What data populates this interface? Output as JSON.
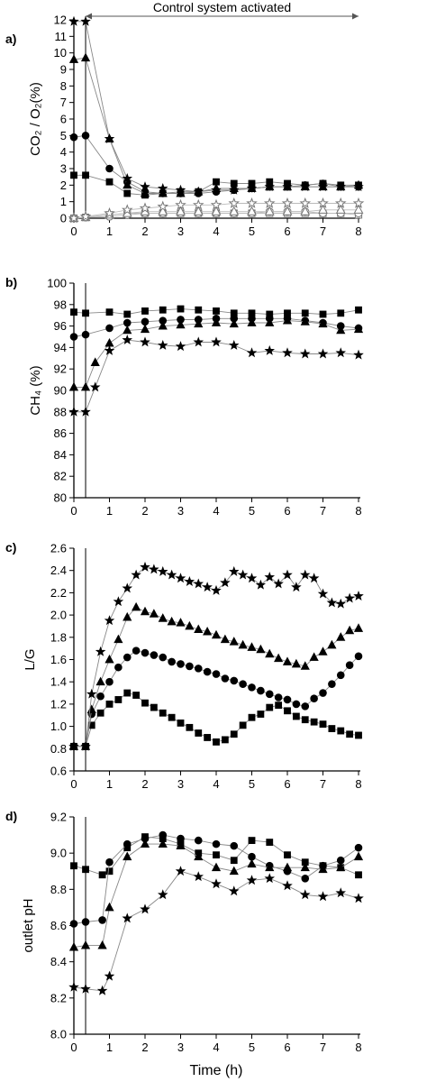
{
  "figure": {
    "xlabel": "Time (h)",
    "banner": "Control system activated",
    "event_time": 0.33,
    "colors": {
      "filled": "#000000",
      "open_fill": "#ffffff",
      "open_stroke": "#777777",
      "line": "#888888"
    }
  },
  "chart_data": [
    {
      "type": "scatter",
      "panel": "a)",
      "ylabel": "CO₂ / O₂(%)",
      "xlim": [
        0,
        8
      ],
      "ylim": [
        0,
        12
      ],
      "xticks": [
        0,
        1,
        2,
        3,
        4,
        5,
        6,
        7,
        8
      ],
      "yticks": [
        0,
        1,
        2,
        3,
        4,
        5,
        6,
        7,
        8,
        9,
        10,
        11,
        12
      ],
      "x": [
        0,
        0.33,
        1,
        1.5,
        2,
        2.5,
        3,
        3.5,
        4,
        4.5,
        5,
        5.5,
        6,
        6.5,
        7,
        7.5,
        8
      ],
      "series": [
        {
          "marker": "square",
          "filled": true,
          "values": [
            2.6,
            2.6,
            2.2,
            1.5,
            1.4,
            1.5,
            1.6,
            1.6,
            2.2,
            2.1,
            2.1,
            2.2,
            2.1,
            2.0,
            2.1,
            2.0,
            2.0
          ]
        },
        {
          "marker": "circle",
          "filled": true,
          "values": [
            4.9,
            5.0,
            3.0,
            2.2,
            1.6,
            1.5,
            1.5,
            1.5,
            1.6,
            1.7,
            1.8,
            1.9,
            1.9,
            2.0,
            2.1,
            1.9,
            1.9
          ]
        },
        {
          "marker": "triangle",
          "filled": true,
          "values": [
            9.6,
            9.7,
            4.8,
            2.0,
            1.5,
            1.5,
            1.5,
            1.6,
            1.8,
            1.8,
            1.8,
            1.9,
            1.9,
            1.9,
            1.9,
            1.9,
            2.0
          ]
        },
        {
          "marker": "star",
          "filled": true,
          "values": [
            11.9,
            11.9,
            4.8,
            2.4,
            1.9,
            1.8,
            1.7,
            1.6,
            1.7,
            1.7,
            1.8,
            1.9,
            1.9,
            1.9,
            1.9,
            1.9,
            1.9
          ]
        },
        {
          "marker": "square",
          "filled": false,
          "values": [
            0.0,
            0.05,
            0.2,
            0.3,
            0.3,
            0.3,
            0.3,
            0.3,
            0.3,
            0.3,
            0.3,
            0.3,
            0.3,
            0.3,
            0.3,
            0.3,
            0.2
          ]
        },
        {
          "marker": "circle",
          "filled": false,
          "values": [
            0.0,
            0.05,
            0.1,
            0.2,
            0.3,
            0.3,
            0.3,
            0.3,
            0.3,
            0.3,
            0.3,
            0.4,
            0.4,
            0.4,
            0.3,
            0.3,
            0.3
          ]
        },
        {
          "marker": "triangle",
          "filled": false,
          "values": [
            0.0,
            0.05,
            0.2,
            0.3,
            0.4,
            0.4,
            0.4,
            0.4,
            0.4,
            0.4,
            0.4,
            0.4,
            0.4,
            0.4,
            0.5,
            0.5,
            0.5
          ]
        },
        {
          "marker": "star",
          "filled": false,
          "values": [
            0.0,
            0.1,
            0.3,
            0.5,
            0.6,
            0.7,
            0.8,
            0.8,
            0.8,
            0.9,
            0.9,
            0.9,
            0.9,
            0.9,
            0.9,
            0.9,
            0.9
          ]
        }
      ]
    },
    {
      "type": "scatter",
      "panel": "b)",
      "ylabel": "CH₄ (%)",
      "xlim": [
        0,
        8
      ],
      "ylim": [
        80,
        100
      ],
      "xticks": [
        0,
        1,
        2,
        3,
        4,
        5,
        6,
        7,
        8
      ],
      "yticks": [
        80,
        82,
        84,
        86,
        88,
        90,
        92,
        94,
        96,
        98,
        100
      ],
      "series": [
        {
          "marker": "square",
          "filled": true,
          "x": [
            0,
            0.33,
            1,
            1.5,
            2,
            2.5,
            3,
            3.5,
            4,
            4.5,
            5,
            5.5,
            6,
            6.5,
            7,
            7.5,
            8
          ],
          "values": [
            97.3,
            97.2,
            97.3,
            97.1,
            97.4,
            97.5,
            97.6,
            97.5,
            97.4,
            97.2,
            97.2,
            97.1,
            97.2,
            97.2,
            97.1,
            97.2,
            97.5
          ]
        },
        {
          "marker": "circle",
          "filled": true,
          "x": [
            0,
            0.33,
            1,
            1.5,
            2,
            2.5,
            3,
            3.5,
            4,
            4.5,
            5,
            5.5,
            6,
            6.5,
            7,
            7.5,
            8
          ],
          "values": [
            95.0,
            95.2,
            95.8,
            96.3,
            96.4,
            96.5,
            96.6,
            96.6,
            96.7,
            96.7,
            96.7,
            96.7,
            96.7,
            96.5,
            96.3,
            96.0,
            95.8
          ]
        },
        {
          "marker": "triangle",
          "filled": true,
          "x": [
            0,
            0.33,
            0.6,
            1,
            1.5,
            2,
            2.5,
            3,
            3.5,
            4,
            4.5,
            5,
            5.5,
            6,
            6.5,
            7,
            7.5,
            8
          ],
          "values": [
            90.3,
            90.3,
            92.6,
            94.4,
            95.6,
            95.7,
            96.0,
            96.1,
            96.2,
            96.3,
            96.2,
            96.3,
            96.3,
            96.5,
            96.4,
            96.2,
            95.6,
            95.7
          ]
        },
        {
          "marker": "star",
          "filled": true,
          "x": [
            0,
            0.33,
            0.6,
            1,
            1.5,
            2,
            2.5,
            3,
            3.5,
            4,
            4.5,
            5,
            5.5,
            6,
            6.5,
            7,
            7.5,
            8
          ],
          "values": [
            88.0,
            88.0,
            90.3,
            93.7,
            94.7,
            94.5,
            94.2,
            94.1,
            94.5,
            94.5,
            94.2,
            93.5,
            93.7,
            93.5,
            93.4,
            93.4,
            93.5,
            93.3
          ]
        }
      ]
    },
    {
      "type": "scatter",
      "panel": "c)",
      "ylabel": "L/G",
      "xlim": [
        0,
        8
      ],
      "ylim": [
        0.6,
        2.6
      ],
      "xticks": [
        0,
        1,
        2,
        3,
        4,
        5,
        6,
        7,
        8
      ],
      "yticks": [
        0.6,
        0.8,
        1.0,
        1.2,
        1.4,
        1.6,
        1.8,
        2.0,
        2.2,
        2.4,
        2.6
      ],
      "series": [
        {
          "marker": "square",
          "filled": true,
          "x": [
            0,
            0.33,
            0.5,
            0.75,
            1,
            1.25,
            1.5,
            1.75,
            2,
            2.25,
            2.5,
            2.75,
            3,
            3.25,
            3.5,
            3.75,
            4,
            4.25,
            4.5,
            4.75,
            5,
            5.25,
            5.5,
            5.75,
            6,
            6.25,
            6.5,
            6.75,
            7,
            7.25,
            7.5,
            7.75,
            8
          ],
          "values": [
            0.82,
            0.82,
            1.01,
            1.12,
            1.2,
            1.24,
            1.3,
            1.28,
            1.21,
            1.17,
            1.12,
            1.08,
            1.03,
            0.99,
            0.94,
            0.9,
            0.86,
            0.88,
            0.93,
            1.01,
            1.08,
            1.11,
            1.17,
            1.19,
            1.14,
            1.09,
            1.06,
            1.04,
            1.02,
            0.98,
            0.96,
            0.93,
            0.92
          ]
        },
        {
          "marker": "circle",
          "filled": true,
          "x": [
            0,
            0.33,
            0.5,
            0.75,
            1,
            1.25,
            1.5,
            1.75,
            2,
            2.25,
            2.5,
            2.75,
            3,
            3.25,
            3.5,
            3.75,
            4,
            4.25,
            4.5,
            4.75,
            5,
            5.25,
            5.5,
            5.75,
            6,
            6.25,
            6.5,
            6.75,
            7,
            7.25,
            7.5,
            7.75,
            8
          ],
          "values": [
            0.82,
            0.82,
            1.11,
            1.27,
            1.4,
            1.53,
            1.62,
            1.68,
            1.66,
            1.64,
            1.62,
            1.58,
            1.56,
            1.54,
            1.52,
            1.49,
            1.47,
            1.43,
            1.41,
            1.38,
            1.35,
            1.32,
            1.29,
            1.26,
            1.24,
            1.2,
            1.18,
            1.25,
            1.3,
            1.38,
            1.46,
            1.55,
            1.63
          ]
        },
        {
          "marker": "triangle",
          "filled": true,
          "x": [
            0,
            0.33,
            0.5,
            0.75,
            1,
            1.25,
            1.5,
            1.75,
            2,
            2.25,
            2.5,
            2.75,
            3,
            3.25,
            3.5,
            3.75,
            4,
            4.25,
            4.5,
            4.75,
            5,
            5.25,
            5.5,
            5.75,
            6,
            6.25,
            6.5,
            6.75,
            7,
            7.25,
            7.5,
            7.75,
            8
          ],
          "values": [
            0.82,
            0.82,
            1.15,
            1.4,
            1.6,
            1.78,
            1.98,
            2.07,
            2.03,
            2.01,
            1.97,
            1.94,
            1.93,
            1.9,
            1.87,
            1.85,
            1.82,
            1.78,
            1.76,
            1.73,
            1.71,
            1.69,
            1.65,
            1.61,
            1.58,
            1.56,
            1.54,
            1.62,
            1.67,
            1.73,
            1.8,
            1.86,
            1.88
          ]
        },
        {
          "marker": "star",
          "filled": true,
          "x": [
            0,
            0.33,
            0.5,
            0.75,
            1,
            1.25,
            1.5,
            1.75,
            2,
            2.25,
            2.5,
            2.75,
            3,
            3.25,
            3.5,
            3.75,
            4,
            4.25,
            4.5,
            4.75,
            5,
            5.25,
            5.5,
            5.75,
            6,
            6.25,
            6.5,
            6.75,
            7,
            7.25,
            7.5,
            7.75,
            8
          ],
          "values": [
            0.82,
            0.82,
            1.29,
            1.67,
            1.95,
            2.12,
            2.24,
            2.36,
            2.43,
            2.41,
            2.39,
            2.36,
            2.33,
            2.3,
            2.28,
            2.25,
            2.22,
            2.29,
            2.39,
            2.36,
            2.33,
            2.27,
            2.34,
            2.28,
            2.36,
            2.25,
            2.36,
            2.33,
            2.19,
            2.11,
            2.1,
            2.15,
            2.17
          ]
        }
      ]
    },
    {
      "type": "scatter",
      "panel": "d)",
      "ylabel": "outlet pH",
      "xlim": [
        0,
        8
      ],
      "ylim": [
        8.0,
        9.2
      ],
      "xticks": [
        0,
        1,
        2,
        3,
        4,
        5,
        6,
        7,
        8
      ],
      "yticks": [
        8.0,
        8.2,
        8.4,
        8.6,
        8.8,
        9.0,
        9.2
      ],
      "series": [
        {
          "marker": "square",
          "filled": true,
          "x": [
            0,
            0.33,
            0.8,
            1,
            1.5,
            2,
            2.5,
            3,
            3.5,
            4,
            4.5,
            5,
            5.5,
            6,
            6.5,
            7,
            7.5,
            8
          ],
          "values": [
            8.93,
            8.91,
            8.88,
            8.9,
            9.03,
            9.09,
            9.08,
            9.05,
            9.0,
            8.99,
            8.96,
            9.07,
            9.06,
            8.99,
            8.95,
            8.93,
            8.92,
            8.88
          ]
        },
        {
          "marker": "circle",
          "filled": true,
          "x": [
            0,
            0.33,
            0.8,
            1,
            1.5,
            2,
            2.5,
            3,
            3.5,
            4,
            4.5,
            5,
            5.5,
            6,
            6.5,
            7,
            7.5,
            8
          ],
          "values": [
            8.61,
            8.62,
            8.63,
            8.95,
            9.05,
            9.08,
            9.1,
            9.08,
            9.07,
            9.05,
            9.04,
            8.98,
            8.93,
            8.9,
            8.86,
            8.93,
            8.96,
            9.03
          ]
        },
        {
          "marker": "triangle",
          "filled": true,
          "x": [
            0,
            0.33,
            0.8,
            1,
            1.5,
            2,
            2.5,
            3,
            3.5,
            4,
            4.5,
            5,
            5.5,
            6,
            6.5,
            7,
            7.5,
            8
          ],
          "values": [
            8.48,
            8.49,
            8.49,
            8.7,
            8.98,
            9.05,
            9.05,
            9.04,
            8.98,
            8.92,
            8.9,
            8.94,
            8.92,
            8.92,
            8.92,
            8.91,
            8.92,
            8.98
          ]
        },
        {
          "marker": "star",
          "filled": true,
          "x": [
            0,
            0.33,
            0.8,
            1,
            1.5,
            2,
            2.5,
            3,
            3.5,
            4,
            4.5,
            5,
            5.5,
            6,
            6.5,
            7,
            7.5,
            8
          ],
          "values": [
            8.26,
            8.25,
            8.24,
            8.32,
            8.64,
            8.69,
            8.77,
            8.9,
            8.87,
            8.83,
            8.79,
            8.85,
            8.86,
            8.82,
            8.77,
            8.76,
            8.78,
            8.75
          ]
        }
      ]
    }
  ]
}
